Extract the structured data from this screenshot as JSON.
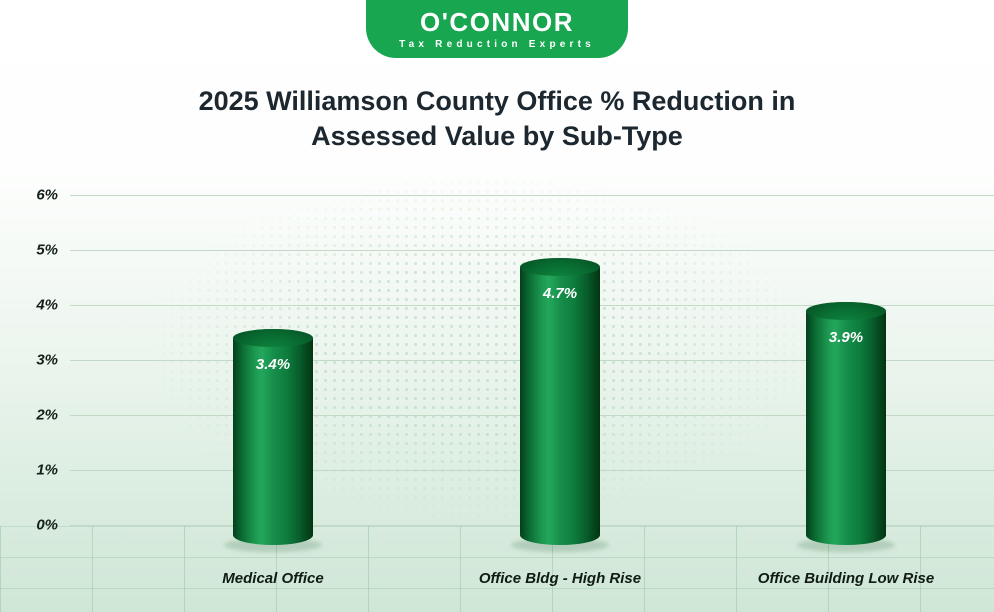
{
  "logo": {
    "brand": "O'CONNOR",
    "tagline": "Tax Reduction Experts",
    "badge_color": "#18a650"
  },
  "header": {
    "title_line1": "2025 Williamson County Office % Reduction in",
    "title_line2": "Assessed Value by Sub-Type"
  },
  "chart_data": {
    "type": "bar",
    "title": "2025 Williamson County Office % Reduction in Assessed Value by Sub-Type",
    "categories": [
      "Medical Office",
      "Office Bldg - High Rise",
      "Office Building Low Rise"
    ],
    "values": [
      3.4,
      4.7,
      3.9
    ],
    "value_labels": [
      "3.4%",
      "4.7%",
      "3.9%"
    ],
    "yticks": [
      "6%",
      "5%",
      "4%",
      "3%",
      "2%",
      "1%",
      "0%"
    ],
    "ylim": [
      0,
      6
    ],
    "grid": true,
    "legend_position": "none",
    "bar_style": "3d-cylinder",
    "bar_colors": {
      "dark": "#05401d",
      "mid": "#0d7c3c",
      "highlight": "#23a75d",
      "top": "#086b30"
    }
  }
}
